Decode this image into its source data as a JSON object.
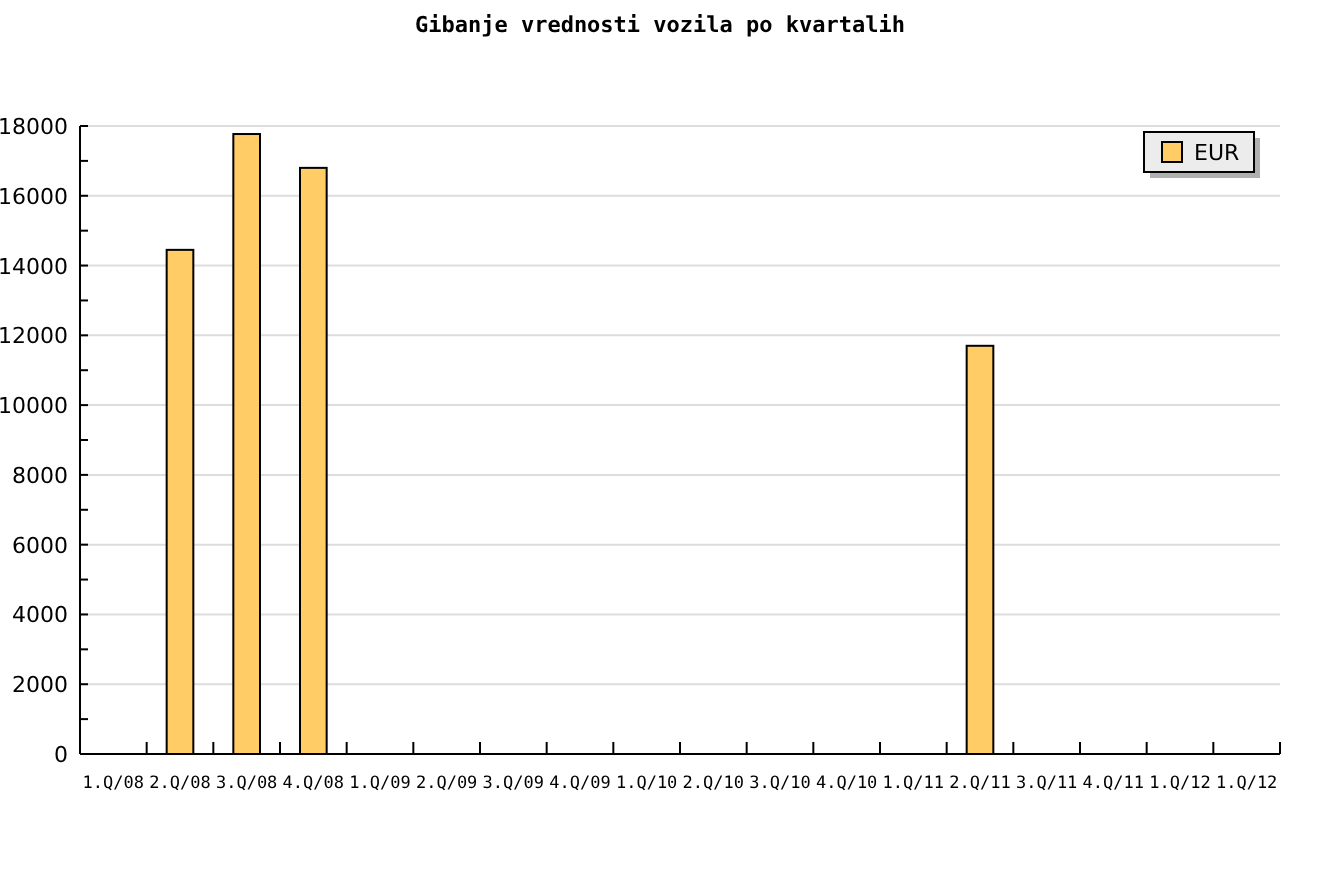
{
  "chart_data": {
    "type": "bar",
    "title": "Gibanje vrednosti vozila po kvartalih",
    "categories": [
      "1.Q/08",
      "2.Q/08",
      "3.Q/08",
      "4.Q/08",
      "1.Q/09",
      "2.Q/09",
      "3.Q/09",
      "4.Q/09",
      "1.Q/10",
      "2.Q/10",
      "3.Q/10",
      "4.Q/10",
      "1.Q/11",
      "2.Q/11",
      "3.Q/11",
      "4.Q/11",
      "1.Q/12",
      "1.Q/12"
    ],
    "series": [
      {
        "name": "EUR",
        "color": "#ffcc66",
        "values": [
          null,
          14450,
          17770,
          16800,
          null,
          null,
          null,
          null,
          null,
          null,
          null,
          null,
          null,
          11700,
          null,
          null,
          null,
          null
        ]
      }
    ],
    "ylim": [
      0,
      18000
    ],
    "yticks": [
      0,
      {
        "value": 1000,
        "label": null
      },
      2000,
      {
        "value": 3000,
        "label": null
      },
      4000,
      {
        "value": 5000,
        "label": null
      },
      6000,
      {
        "value": 7000,
        "label": null
      },
      8000,
      {
        "value": 9000,
        "label": null
      },
      10000,
      {
        "value": 11000,
        "label": null
      },
      12000,
      {
        "value": 13000,
        "label": null
      },
      14000,
      {
        "value": 15000,
        "label": null
      },
      16000,
      {
        "value": 17000,
        "label": null
      },
      18000
    ],
    "grid": "y",
    "legend": "top right"
  }
}
